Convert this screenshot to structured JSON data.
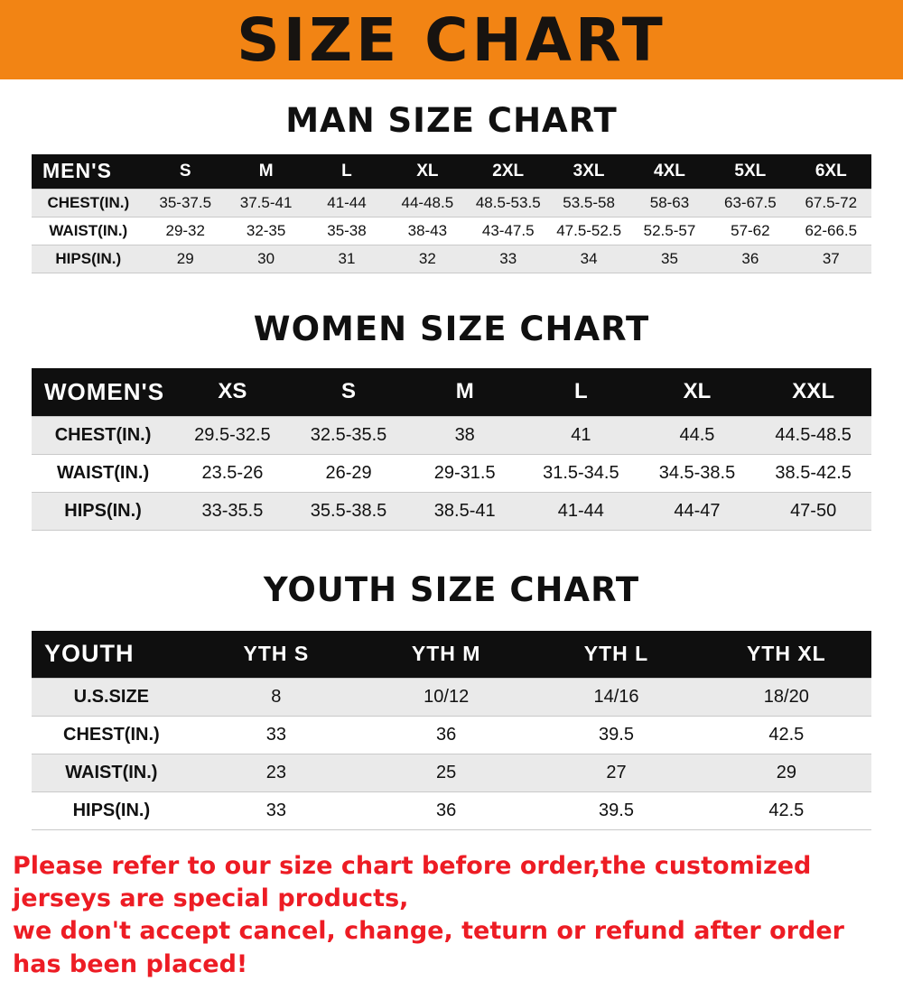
{
  "banner": {
    "title": "SIZE CHART",
    "background": "#f28414",
    "text_color": "#171310"
  },
  "chart_data": [
    {
      "type": "table",
      "title": "MAN SIZE CHART",
      "columns": [
        "MEN'S",
        "S",
        "M",
        "L",
        "XL",
        "2XL",
        "3XL",
        "4XL",
        "5XL",
        "6XL"
      ],
      "rows": [
        [
          "CHEST(IN.)",
          "35-37.5",
          "37.5-41",
          "41-44",
          "44-48.5",
          "48.5-53.5",
          "53.5-58",
          "58-63",
          "63-67.5",
          "67.5-72"
        ],
        [
          "WAIST(IN.)",
          "29-32",
          "32-35",
          "35-38",
          "38-43",
          "43-47.5",
          "47.5-52.5",
          "52.5-57",
          "57-62",
          "62-66.5"
        ],
        [
          "HIPS(IN.)",
          "29",
          "30",
          "31",
          "32",
          "33",
          "34",
          "35",
          "36",
          "37"
        ]
      ]
    },
    {
      "type": "table",
      "title": "WOMEN SIZE CHART",
      "columns": [
        "WOMEN'S",
        "XS",
        "S",
        "M",
        "L",
        "XL",
        "XXL"
      ],
      "rows": [
        [
          "CHEST(IN.)",
          "29.5-32.5",
          "32.5-35.5",
          "38",
          "41",
          "44.5",
          "44.5-48.5"
        ],
        [
          "WAIST(IN.)",
          "23.5-26",
          "26-29",
          "29-31.5",
          "31.5-34.5",
          "34.5-38.5",
          "38.5-42.5"
        ],
        [
          "HIPS(IN.)",
          "33-35.5",
          "35.5-38.5",
          "38.5-41",
          "41-44",
          "44-47",
          "47-50"
        ]
      ]
    },
    {
      "type": "table",
      "title": "YOUTH SIZE CHART",
      "columns": [
        "YOUTH",
        "YTH S",
        "YTH M",
        "YTH L",
        "YTH XL"
      ],
      "rows": [
        [
          "U.S.SIZE",
          "8",
          "10/12",
          "14/16",
          "18/20"
        ],
        [
          "CHEST(IN.)",
          "33",
          "36",
          "39.5",
          "42.5"
        ],
        [
          "WAIST(IN.)",
          "23",
          "25",
          "27",
          "29"
        ],
        [
          "HIPS(IN.)",
          "33",
          "36",
          "39.5",
          "42.5"
        ]
      ]
    }
  ],
  "footer": {
    "line1": "Please refer to our size chart before order,the customized jerseys are special products,",
    "line2": "we don't accept cancel, change, teturn or refund after order has been placed!",
    "color": "#ed1c24"
  },
  "table_header_bg": "#0f0f0f",
  "row_alt_bg": "#eaeaea"
}
